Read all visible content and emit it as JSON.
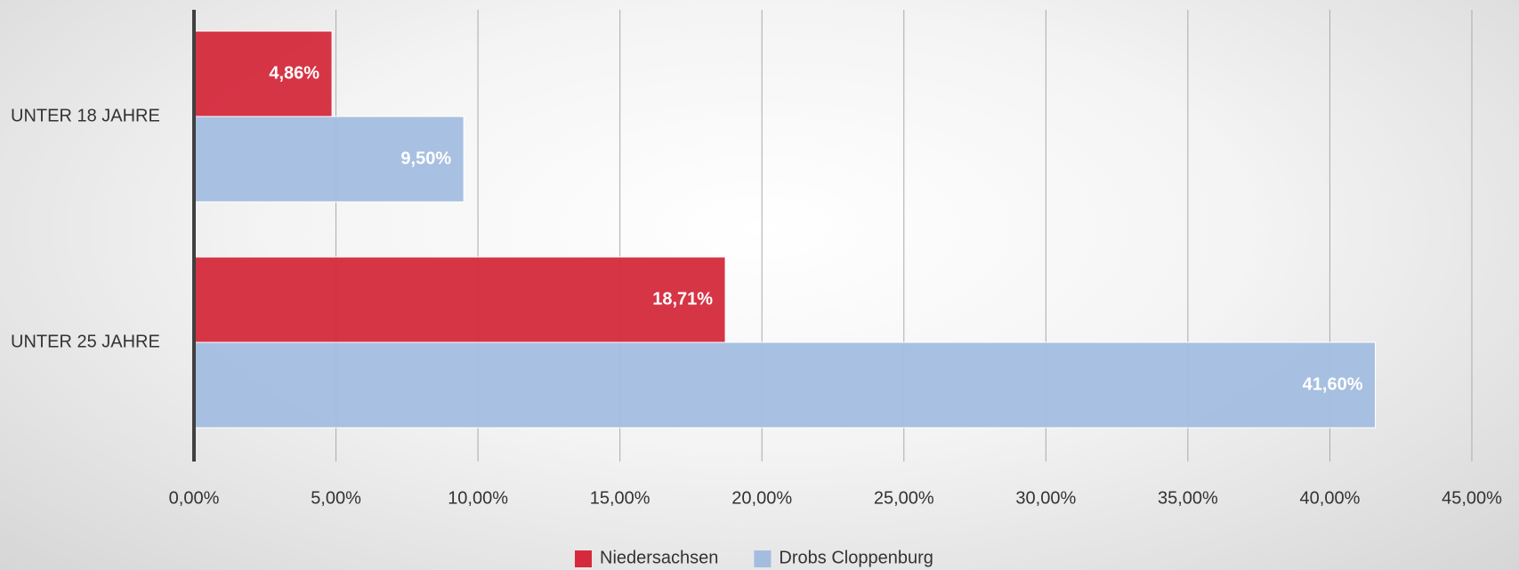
{
  "chart_data": {
    "type": "bar",
    "orientation": "horizontal",
    "categories": [
      "UNTER 18 JAHRE",
      "UNTER 25 JAHRE"
    ],
    "series": [
      {
        "name": "Niedersachsen",
        "color": "#d42a3c",
        "values": [
          4.86,
          18.71
        ],
        "value_labels": [
          "4,86%",
          "18,71%"
        ]
      },
      {
        "name": "Drobs Cloppenburg",
        "color": "#a3bddf",
        "values": [
          9.5,
          41.6
        ],
        "value_labels": [
          "9,50%",
          "41,60%"
        ]
      }
    ],
    "xlim": [
      0,
      45
    ],
    "xticks": [
      {
        "value": 0,
        "label": "0,00%"
      },
      {
        "value": 5,
        "label": "5,00%"
      },
      {
        "value": 10,
        "label": "10,00%"
      },
      {
        "value": 15,
        "label": "15,00%"
      },
      {
        "value": 20,
        "label": "20,00%"
      },
      {
        "value": 25,
        "label": "25,00%"
      },
      {
        "value": 30,
        "label": "30,00%"
      },
      {
        "value": 35,
        "label": "35,00%"
      },
      {
        "value": 40,
        "label": "40,00%"
      },
      {
        "value": 45,
        "label": "45,00%"
      }
    ],
    "grid": true,
    "legend": "bottom"
  }
}
